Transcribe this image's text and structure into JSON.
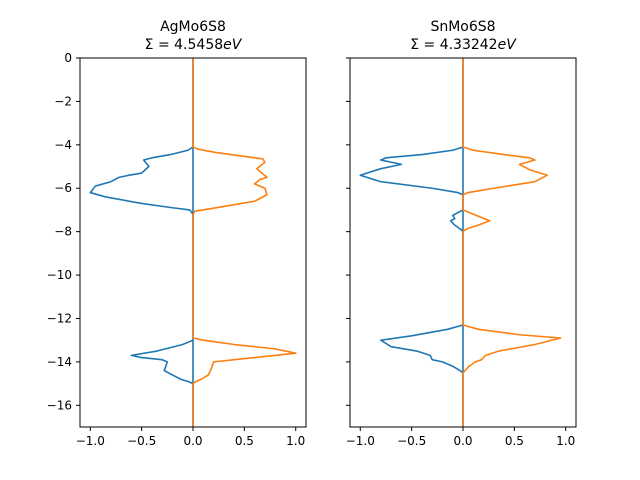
{
  "chart_data": [
    {
      "type": "line",
      "title": "AgMo6S8",
      "subtitle_prefix": "Σ = ",
      "subtitle_value": "4.5458",
      "subtitle_unit": "eV",
      "xlim": [
        -1.1,
        1.1
      ],
      "ylim": [
        -17,
        0
      ],
      "xticks": [
        -1.0,
        -0.5,
        0.0,
        0.5,
        1.0
      ],
      "xtick_labels": [
        "−1.0",
        "−0.5",
        "0.0",
        "0.5",
        "1.0"
      ],
      "yticks": [
        0,
        -2,
        -4,
        -6,
        -8,
        -10,
        -12,
        -14,
        -16
      ],
      "ytick_labels": [
        "0",
        "−2",
        "−4",
        "−6",
        "−8",
        "−10",
        "−12",
        "−14",
        "−16"
      ],
      "grid": false,
      "colors": [
        "#1f77b4",
        "#ff7f0e"
      ],
      "series": [
        {
          "x": [
            0,
            0,
            -0.05,
            -0.22,
            -0.4,
            -0.48,
            -0.43,
            -0.5,
            -0.62,
            -0.72,
            -0.8,
            -0.95,
            -1.0,
            -0.85,
            -0.5,
            -0.2,
            -0.03,
            0,
            0,
            0,
            -0.1,
            -0.35,
            -0.6,
            -0.5,
            -0.3,
            -0.25,
            -0.28,
            -0.2,
            -0.12,
            -0.05,
            0,
            0
          ],
          "y": [
            -17,
            -4.1,
            -4.25,
            -4.45,
            -4.6,
            -4.7,
            -5.0,
            -5.3,
            -5.4,
            -5.5,
            -5.7,
            -5.9,
            -6.2,
            -6.4,
            -6.7,
            -6.9,
            -7.0,
            -7.2,
            -12.9,
            -13.0,
            -13.2,
            -13.5,
            -13.7,
            -13.8,
            -13.9,
            -14.0,
            -14.4,
            -14.6,
            -14.8,
            -14.9,
            -15.0,
            0
          ]
        },
        {
          "x": [
            0,
            0,
            0.05,
            0.22,
            0.45,
            0.68,
            0.7,
            0.62,
            0.72,
            0.65,
            0.6,
            0.7,
            0.72,
            0.6,
            0.35,
            0.1,
            0.02,
            0,
            0,
            0,
            0.1,
            0.4,
            0.8,
            1.0,
            0.6,
            0.2,
            0.18,
            0.15,
            0.08,
            0.03,
            0,
            0
          ],
          "y": [
            0,
            -4.1,
            -4.2,
            -4.35,
            -4.5,
            -4.65,
            -4.8,
            -5.1,
            -5.5,
            -5.6,
            -5.8,
            -6.0,
            -6.3,
            -6.6,
            -6.8,
            -7.0,
            -7.05,
            -7.2,
            -12.8,
            -12.9,
            -13.0,
            -13.2,
            -13.4,
            -13.6,
            -13.8,
            -14.0,
            -14.3,
            -14.6,
            -14.8,
            -14.9,
            -15.0,
            -17
          ]
        }
      ]
    },
    {
      "type": "line",
      "title": "SnMo6S8",
      "subtitle_prefix": "Σ = ",
      "subtitle_value": "4.33242",
      "subtitle_unit": "eV",
      "xlim": [
        -1.1,
        1.1
      ],
      "ylim": [
        -17,
        0
      ],
      "xticks": [
        -1.0,
        -0.5,
        0.0,
        0.5,
        1.0
      ],
      "xtick_labels": [
        "−1.0",
        "−0.5",
        "0.0",
        "0.5",
        "1.0"
      ],
      "yticks": [
        0,
        -2,
        -4,
        -6,
        -8,
        -10,
        -12,
        -14,
        -16
      ],
      "grid": false,
      "colors": [
        "#1f77b4",
        "#ff7f0e"
      ],
      "series": [
        {
          "x": [
            0,
            0,
            -0.1,
            -0.4,
            -0.75,
            -0.8,
            -0.6,
            -0.8,
            -1.0,
            -0.8,
            -0.3,
            -0.05,
            0,
            0,
            -0.1,
            -0.08,
            -0.12,
            -0.08,
            -0.02,
            0,
            0,
            0,
            -0.15,
            -0.5,
            -0.8,
            -0.7,
            -0.45,
            -0.32,
            -0.3,
            -0.2,
            -0.1,
            -0.03,
            0,
            0
          ],
          "y": [
            -17,
            -4.1,
            -4.25,
            -4.45,
            -4.6,
            -4.7,
            -4.9,
            -5.1,
            -5.4,
            -5.7,
            -6.0,
            -6.2,
            -6.3,
            -7.0,
            -7.25,
            -7.4,
            -7.5,
            -7.7,
            -7.9,
            -8.0,
            -12.2,
            -12.3,
            -12.5,
            -12.8,
            -13.0,
            -13.3,
            -13.5,
            -13.7,
            -13.9,
            -14.0,
            -14.2,
            -14.4,
            -14.5,
            0
          ]
        },
        {
          "x": [
            0,
            0,
            0.1,
            0.4,
            0.65,
            0.7,
            0.55,
            0.65,
            0.82,
            0.7,
            0.3,
            0.05,
            0,
            0,
            0.1,
            0.26,
            0.15,
            0.05,
            0.01,
            0,
            0,
            0,
            0.15,
            0.55,
            0.95,
            0.7,
            0.35,
            0.22,
            0.18,
            0.12,
            0.06,
            0.02,
            0,
            0
          ],
          "y": [
            0,
            -4.1,
            -4.25,
            -4.45,
            -4.6,
            -4.7,
            -4.9,
            -5.15,
            -5.4,
            -5.7,
            -6.0,
            -6.2,
            -6.3,
            -7.0,
            -7.2,
            -7.5,
            -7.7,
            -7.85,
            -7.95,
            -8.0,
            -12.2,
            -12.3,
            -12.5,
            -12.75,
            -12.9,
            -13.2,
            -13.5,
            -13.7,
            -13.9,
            -14.0,
            -14.2,
            -14.4,
            -14.5,
            -17
          ]
        }
      ]
    }
  ]
}
